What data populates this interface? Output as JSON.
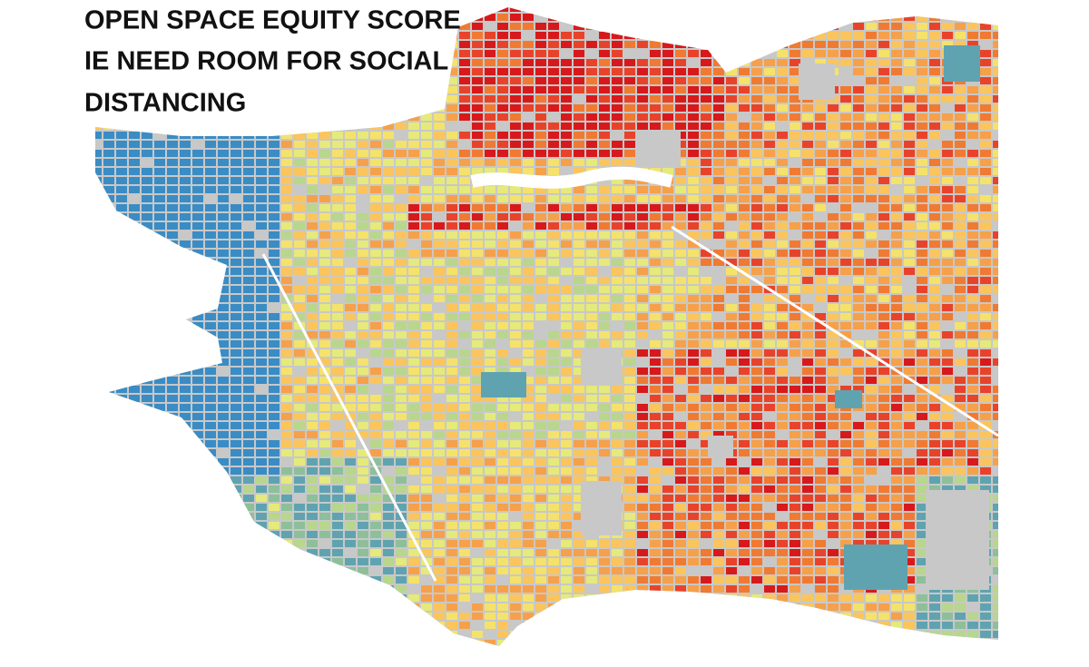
{
  "header": {
    "title_lines": [
      "OPEN SPACE EQUITY SCORE",
      "IE NEED ROOM FOR SOCIAL",
      "DISTANCING"
    ]
  }
}
